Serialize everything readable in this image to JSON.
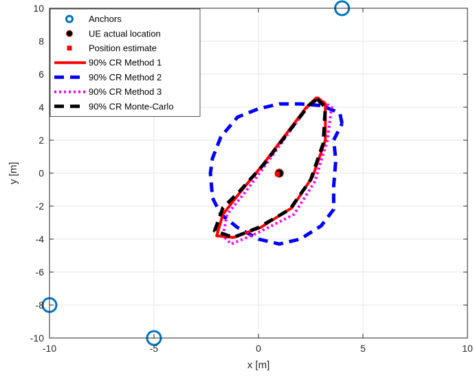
{
  "chart_data": {
    "type": "scatter",
    "title": "",
    "xlabel": "x [m]",
    "ylabel": "y [m]",
    "xlim": [
      -10,
      10
    ],
    "ylim": [
      -10,
      10
    ],
    "xticks": [
      -10,
      -5,
      0,
      5,
      10
    ],
    "yticks": [
      -10,
      -8,
      -6,
      -4,
      -2,
      0,
      2,
      4,
      6,
      8,
      10
    ],
    "grid": true,
    "legend_position": "top-left",
    "colors": {
      "anchors": "#0072BD",
      "method1": "#ff0000",
      "method2": "#0000ff",
      "method3": "#ff00ff",
      "montecarlo": "#000000"
    },
    "series": [
      {
        "name": "Anchors",
        "style": "marker",
        "marker": "circle-open",
        "points": [
          [
            4,
            10
          ],
          [
            -10,
            -8
          ],
          [
            -5,
            -10
          ]
        ]
      },
      {
        "name": "UE actual location",
        "style": "marker",
        "marker": "circle-filled",
        "points": [
          [
            1,
            0
          ]
        ]
      },
      {
        "name": "Position estimate",
        "style": "marker",
        "marker": "square-filled",
        "points": [
          [
            0.9,
            -0.05
          ]
        ]
      },
      {
        "name": "90% CR Method 1",
        "style": "solid",
        "points": [
          [
            2.8,
            4.6
          ],
          [
            3.2,
            4.2
          ],
          [
            3.2,
            2.0
          ],
          [
            2.6,
            -0.2
          ],
          [
            1.6,
            -2.1
          ],
          [
            0.1,
            -3.3
          ],
          [
            -1.2,
            -3.9
          ],
          [
            -2.0,
            -3.8
          ],
          [
            -1.7,
            -2.5
          ],
          [
            -0.9,
            -1.2
          ],
          [
            0.2,
            0.5
          ],
          [
            1.4,
            2.5
          ],
          [
            2.3,
            4.0
          ],
          [
            2.8,
            4.6
          ]
        ]
      },
      {
        "name": "90% CR Method 2",
        "style": "dashed",
        "points": [
          [
            4.0,
            3.0
          ],
          [
            3.9,
            3.6
          ],
          [
            3.6,
            3.8
          ],
          [
            3.0,
            4.1
          ],
          [
            2.0,
            4.2
          ],
          [
            1.0,
            4.2
          ],
          [
            0.0,
            3.9
          ],
          [
            -1.0,
            3.4
          ],
          [
            -1.8,
            2.2
          ],
          [
            -2.2,
            0.9
          ],
          [
            -2.3,
            0.0
          ],
          [
            -2.2,
            -1.5
          ],
          [
            -1.8,
            -2.5
          ],
          [
            -1.0,
            -3.3
          ],
          [
            0.0,
            -4.0
          ],
          [
            1.0,
            -4.3
          ],
          [
            2.0,
            -4.0
          ],
          [
            3.0,
            -3.2
          ],
          [
            3.6,
            -2.2
          ],
          [
            3.6,
            -1.2
          ],
          [
            3.6,
            -0.8
          ],
          [
            3.7,
            0.8
          ],
          [
            3.6,
            2.0
          ],
          [
            4.0,
            3.0
          ]
        ]
      },
      {
        "name": "90% CR Method 3",
        "style": "dotted",
        "points": [
          [
            2.9,
            4.5
          ],
          [
            3.5,
            4.0
          ],
          [
            3.3,
            2.0
          ],
          [
            2.7,
            -0.5
          ],
          [
            1.7,
            -2.5
          ],
          [
            0.0,
            -3.6
          ],
          [
            -1.3,
            -4.3
          ],
          [
            -1.7,
            -3.8
          ],
          [
            -1.5,
            -2.5
          ],
          [
            -0.6,
            -1.1
          ],
          [
            0.4,
            0.6
          ],
          [
            1.6,
            2.7
          ],
          [
            2.4,
            4.1
          ],
          [
            2.9,
            4.5
          ]
        ]
      },
      {
        "name": "90% CR Monte-Carlo",
        "style": "dashed",
        "points": [
          [
            2.8,
            4.5
          ],
          [
            3.2,
            4.0
          ],
          [
            3.1,
            1.8
          ],
          [
            2.5,
            -0.4
          ],
          [
            1.5,
            -2.2
          ],
          [
            0.0,
            -3.3
          ],
          [
            -1.2,
            -3.9
          ],
          [
            -2.1,
            -3.5
          ],
          [
            -1.7,
            -2.1
          ],
          [
            -0.9,
            -1.1
          ],
          [
            0.3,
            0.6
          ],
          [
            1.5,
            2.6
          ],
          [
            2.4,
            4.1
          ],
          [
            2.8,
            4.5
          ]
        ]
      }
    ]
  }
}
